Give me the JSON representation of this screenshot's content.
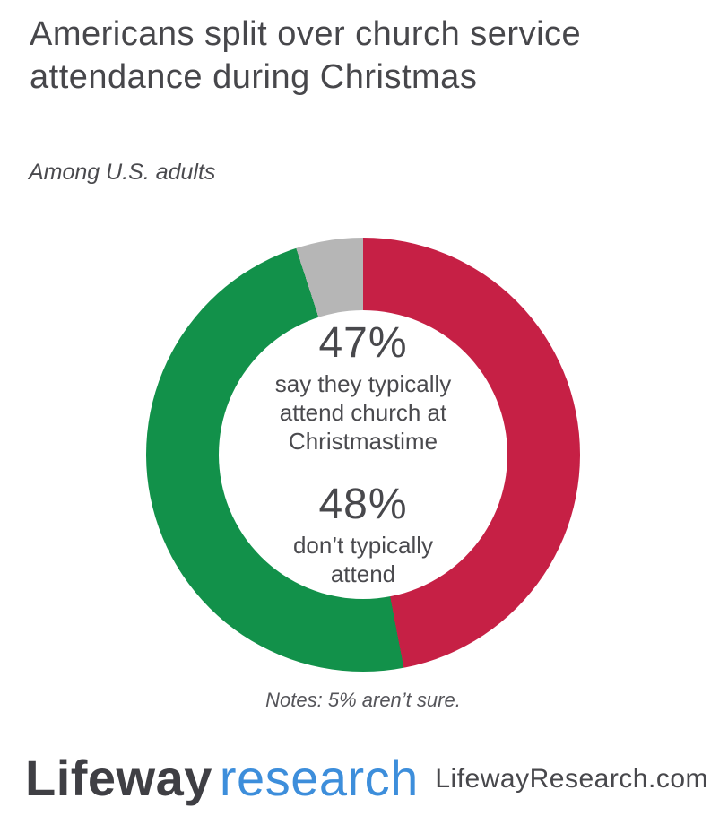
{
  "header": {
    "title": "Americans split over church service\nattendance during Christmas",
    "subtitle": "Among U.S. adults"
  },
  "center": {
    "attend": {
      "value": "47%",
      "label": "say they typically\nattend church at\nChristmastime"
    },
    "no_attend": {
      "value": "48%",
      "label": "don’t typically\nattend"
    }
  },
  "notes": "Notes: 5% aren’t sure.",
  "footer": {
    "logo_primary": "Lifeway",
    "logo_secondary": "research",
    "site": "LifewayResearch.com"
  },
  "colors": {
    "attend_red": "#C62045",
    "no_attend_green": "#12914A",
    "not_sure_gray": "#B6B6B6",
    "logo_blue": "#3D8EDB",
    "text_dark": "#47474B"
  },
  "chart_data": {
    "type": "pie",
    "subtype": "donut",
    "title": "Americans split over church service attendance during Christmas",
    "subtitle": "Among U.S. adults",
    "start_angle_deg": 0,
    "legend_position": "none",
    "segments": [
      {
        "label": "say they typically attend church at Christmastime",
        "value": 47,
        "color": "#C62045"
      },
      {
        "label": "don’t typically attend",
        "value": 48,
        "color": "#12914A"
      },
      {
        "label": "aren’t sure",
        "value": 5,
        "color": "#B6B6B6"
      }
    ],
    "note": "Notes: 5% aren’t sure."
  }
}
